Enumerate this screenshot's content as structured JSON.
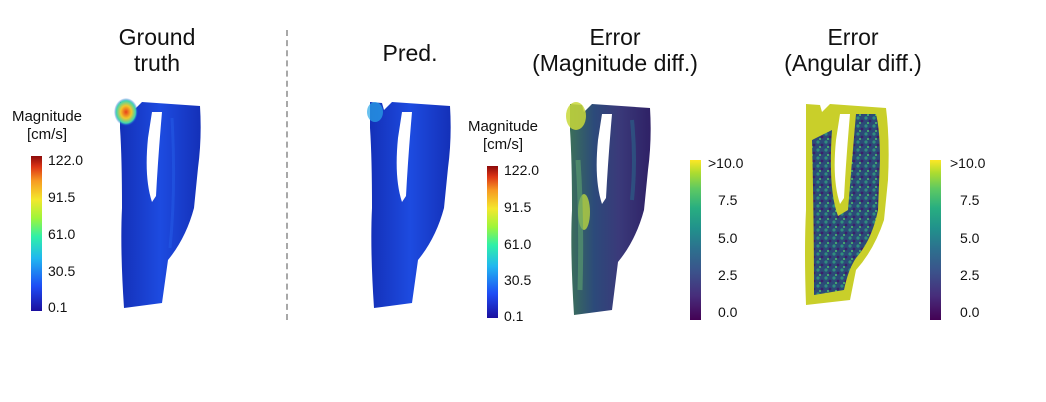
{
  "titles": {
    "ground_truth": [
      "Ground",
      "truth"
    ],
    "pred": "Pred.",
    "error_magnitude": [
      "Error",
      "(Magnitude diff.)"
    ],
    "error_angular": [
      "Error",
      "(Angular diff.)"
    ]
  },
  "colorbar_magnitude": {
    "title": [
      "Magnitude",
      "[cm/s]"
    ],
    "ticks": [
      "122.0",
      "91.5",
      "61.0",
      "30.5",
      "0.1"
    ],
    "colormap": "jet"
  },
  "colorbar_error": {
    "ticks": [
      ">10.0",
      "7.5",
      "5.0",
      "2.5",
      "0.0"
    ],
    "colormap": "viridis"
  },
  "colors": {
    "vessel_blue": "#1a3fd0",
    "viridis_low": "#440154",
    "viridis_high": "#fde725",
    "divider": "#a8a8a8"
  }
}
